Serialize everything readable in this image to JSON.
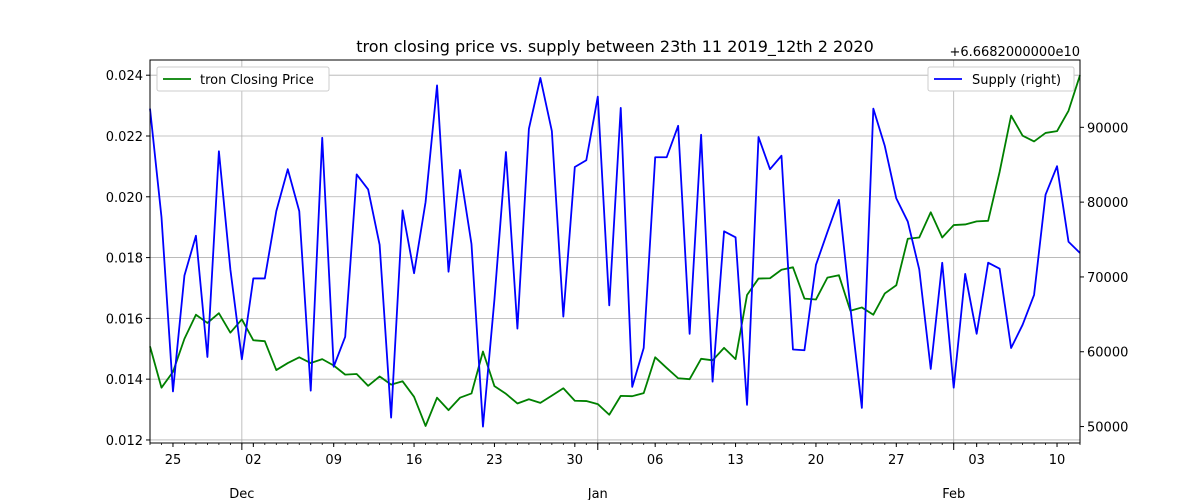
{
  "chart_data": {
    "type": "line",
    "title": "tron closing price vs. supply between 23th 11 2019_12th 2 2020",
    "x_start": "2019-11-23",
    "x_end": "2020-02-12",
    "x_minor_ticks": [
      {
        "date": "2019-11-25",
        "label": "25"
      },
      {
        "date": "2019-12-02",
        "label": "02"
      },
      {
        "date": "2019-12-09",
        "label": "09"
      },
      {
        "date": "2019-12-16",
        "label": "16"
      },
      {
        "date": "2019-12-23",
        "label": "23"
      },
      {
        "date": "2019-12-30",
        "label": "30"
      },
      {
        "date": "2020-01-06",
        "label": "06"
      },
      {
        "date": "2020-01-13",
        "label": "13"
      },
      {
        "date": "2020-01-20",
        "label": "20"
      },
      {
        "date": "2020-01-27",
        "label": "27"
      },
      {
        "date": "2020-02-03",
        "label": "03"
      },
      {
        "date": "2020-02-10",
        "label": "10"
      }
    ],
    "x_major_ticks": [
      {
        "date": "2019-12-01",
        "label": "Dec"
      },
      {
        "date": "2020-01-01",
        "label": "Jan"
      },
      {
        "date": "2020-02-01",
        "label": "Feb"
      }
    ],
    "grid": true,
    "left_axis": {
      "ylim": [
        0.0119,
        0.0245
      ],
      "ticks": [
        {
          "value": 0.012,
          "label": "0.012"
        },
        {
          "value": 0.014,
          "label": "0.014"
        },
        {
          "value": 0.016,
          "label": "0.016"
        },
        {
          "value": 0.018,
          "label": "0.018"
        },
        {
          "value": 0.02,
          "label": "0.020"
        },
        {
          "value": 0.022,
          "label": "0.022"
        },
        {
          "value": 0.024,
          "label": "0.024"
        }
      ]
    },
    "right_axis": {
      "offset_label": "+6.6682000000e10",
      "ylim": [
        47800,
        99000
      ],
      "ticks": [
        {
          "value": 50000,
          "label": "50000"
        },
        {
          "value": 60000,
          "label": "60000"
        },
        {
          "value": 70000,
          "label": "70000"
        },
        {
          "value": 80000,
          "label": "80000"
        },
        {
          "value": 90000,
          "label": "90000"
        }
      ]
    },
    "series": [
      {
        "name": "tron Closing Price",
        "axis": "left",
        "color": "#008000",
        "legend_position": "upper left",
        "values": [
          0.01508,
          0.01372,
          0.01424,
          0.01533,
          0.01612,
          0.01585,
          0.01617,
          0.01553,
          0.01597,
          0.01528,
          0.01525,
          0.0143,
          0.01453,
          0.01472,
          0.01453,
          0.01466,
          0.01445,
          0.01415,
          0.01417,
          0.01378,
          0.01409,
          0.01382,
          0.01393,
          0.01342,
          0.01246,
          0.01339,
          0.01298,
          0.01339,
          0.01353,
          0.01491,
          0.01377,
          0.01352,
          0.0132,
          0.01334,
          0.01322,
          0.01346,
          0.0137,
          0.01329,
          0.01328,
          0.01318,
          0.01283,
          0.01345,
          0.01344,
          0.01354,
          0.01472,
          0.01437,
          0.01403,
          0.014,
          0.01467,
          0.01462,
          0.01503,
          0.01466,
          0.01677,
          0.01731,
          0.01732,
          0.0176,
          0.01768,
          0.01665,
          0.01662,
          0.01734,
          0.01742,
          0.01625,
          0.01636,
          0.01612,
          0.01682,
          0.01709,
          0.01862,
          0.01866,
          0.01949,
          0.01866,
          0.01907,
          0.01909,
          0.01919,
          0.01921,
          0.02082,
          0.02267,
          0.02201,
          0.02182,
          0.0221,
          0.02216,
          0.02283,
          0.024
        ]
      },
      {
        "name": "Supply (right)",
        "axis": "right",
        "color": "#0000ff",
        "legend_position": "upper right",
        "values": [
          92500,
          78000,
          54700,
          70200,
          75500,
          59300,
          86800,
          71000,
          59000,
          69800,
          69800,
          78800,
          84400,
          78800,
          54800,
          88600,
          58000,
          62000,
          83700,
          81700,
          74300,
          51200,
          78900,
          70500,
          80000,
          95600,
          70700,
          84300,
          74400,
          50000,
          67000,
          86700,
          63100,
          89800,
          96600,
          89500,
          64700,
          84700,
          85600,
          94100,
          66200,
          92600,
          55300,
          60500,
          86000,
          86000,
          90200,
          62400,
          89000,
          56000,
          76100,
          75300,
          52900,
          88700,
          84400,
          86200,
          60300,
          60200,
          71600,
          76000,
          80300,
          65900,
          52500,
          92500,
          87500,
          80500,
          77400,
          71000,
          57700,
          71900,
          55200,
          70400,
          62400,
          71900,
          71100,
          60500,
          63600,
          67600,
          81000,
          84800,
          74700,
          73200
        ]
      }
    ]
  }
}
